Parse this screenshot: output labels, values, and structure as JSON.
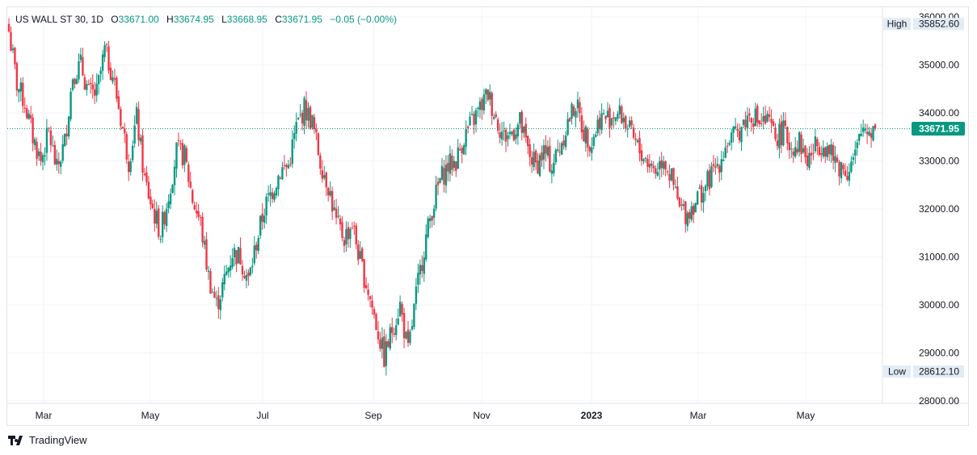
{
  "header": {
    "symbol": "US WALL ST 30, 1D",
    "o_label": "O",
    "o_value": "33671.00",
    "h_label": "H",
    "h_value": "33674.95",
    "l_label": "L",
    "l_value": "33668.95",
    "c_label": "C",
    "c_value": "33671.95",
    "change": "−0.05 (−0.00%)"
  },
  "footer": {
    "brand": "TradingView",
    "logo_icon": "tradingview-logo-icon"
  },
  "colors": {
    "up": "#089981",
    "down": "#f23645",
    "grid": "#f0f3fa",
    "price_line": "#089981",
    "tag_bg": "#e3ecf5"
  },
  "chart_data": {
    "type": "candlestick",
    "symbol": "US WALL ST 30",
    "interval": "1D",
    "y_axis": {
      "ticks": [
        28000,
        29000,
        30000,
        31000,
        32000,
        33000,
        34000,
        35000,
        36000
      ],
      "tick_labels": [
        "28000.00",
        "29000.00",
        "30000.00",
        "31000.00",
        "32000.00",
        "33000.00",
        "34000.00",
        "35000.00",
        "36000.00"
      ],
      "range": [
        27950,
        36200
      ],
      "position": "right"
    },
    "x_axis": {
      "labels": [
        "Mar",
        "May",
        "Jul",
        "Sep",
        "Nov",
        "2023",
        "Mar",
        "May"
      ],
      "bold_labels": [
        "2023"
      ]
    },
    "grid": true,
    "last_price": {
      "value": 33671.95,
      "label": "33671.95"
    },
    "high": {
      "label": "High",
      "value": 35852.6,
      "value_label": "35852.60"
    },
    "low": {
      "label": "Low",
      "value": 28612.1,
      "value_label": "28612.10"
    },
    "close_path": [
      [
        0,
        35700
      ],
      [
        4,
        34600
      ],
      [
        8,
        34200
      ],
      [
        12,
        33500
      ],
      [
        16,
        33000
      ],
      [
        20,
        33600
      ],
      [
        24,
        32800
      ],
      [
        28,
        33400
      ],
      [
        32,
        34800
      ],
      [
        36,
        35000
      ],
      [
        40,
        34400
      ],
      [
        44,
        34400
      ],
      [
        48,
        35300
      ],
      [
        52,
        34800
      ],
      [
        56,
        33900
      ],
      [
        60,
        33000
      ],
      [
        64,
        33900
      ],
      [
        68,
        32600
      ],
      [
        72,
        32000
      ],
      [
        76,
        31500
      ],
      [
        80,
        32300
      ],
      [
        84,
        33200
      ],
      [
        88,
        33100
      ],
      [
        92,
        32200
      ],
      [
        96,
        31700
      ],
      [
        100,
        30600
      ],
      [
        104,
        30000
      ],
      [
        108,
        30500
      ],
      [
        112,
        31100
      ],
      [
        116,
        31000
      ],
      [
        120,
        30500
      ],
      [
        124,
        31300
      ],
      [
        128,
        32000
      ],
      [
        132,
        32400
      ],
      [
        136,
        32800
      ],
      [
        140,
        32900
      ],
      [
        144,
        33700
      ],
      [
        148,
        34100
      ],
      [
        152,
        33800
      ],
      [
        156,
        33000
      ],
      [
        160,
        32500
      ],
      [
        164,
        31700
      ],
      [
        168,
        31400
      ],
      [
        172,
        31700
      ],
      [
        176,
        30900
      ],
      [
        180,
        30300
      ],
      [
        184,
        29600
      ],
      [
        188,
        28900
      ],
      [
        192,
        29500
      ],
      [
        196,
        30000
      ],
      [
        200,
        29000
      ],
      [
        204,
        30200
      ],
      [
        208,
        31200
      ],
      [
        212,
        32000
      ],
      [
        216,
        32600
      ],
      [
        220,
        32900
      ],
      [
        224,
        33000
      ],
      [
        228,
        33500
      ],
      [
        232,
        33800
      ],
      [
        236,
        34100
      ],
      [
        240,
        34400
      ],
      [
        244,
        33900
      ],
      [
        248,
        33500
      ],
      [
        252,
        33600
      ],
      [
        256,
        33800
      ],
      [
        260,
        33200
      ],
      [
        264,
        32900
      ],
      [
        268,
        33200
      ],
      [
        272,
        32900
      ],
      [
        276,
        33300
      ],
      [
        280,
        33800
      ],
      [
        284,
        34200
      ],
      [
        288,
        33600
      ],
      [
        292,
        33400
      ],
      [
        296,
        33900
      ],
      [
        300,
        33900
      ],
      [
        304,
        34000
      ],
      [
        308,
        33900
      ],
      [
        312,
        33500
      ],
      [
        316,
        33200
      ],
      [
        320,
        33000
      ],
      [
        324,
        32800
      ],
      [
        328,
        33100
      ],
      [
        332,
        32600
      ],
      [
        336,
        32000
      ],
      [
        340,
        31900
      ],
      [
        344,
        32200
      ],
      [
        348,
        32400
      ],
      [
        352,
        32700
      ],
      [
        356,
        33000
      ],
      [
        360,
        33400
      ],
      [
        364,
        33500
      ],
      [
        368,
        33800
      ],
      [
        372,
        34000
      ],
      [
        376,
        33800
      ],
      [
        380,
        33800
      ],
      [
        384,
        33500
      ],
      [
        388,
        33600
      ],
      [
        392,
        33300
      ],
      [
        396,
        33400
      ],
      [
        400,
        33000
      ],
      [
        404,
        33300
      ],
      [
        408,
        33400
      ],
      [
        412,
        33100
      ],
      [
        416,
        32900
      ],
      [
        420,
        32800
      ],
      [
        424,
        33100
      ],
      [
        428,
        33700
      ],
      [
        432,
        33650
      ],
      [
        434,
        33671.95
      ]
    ]
  }
}
